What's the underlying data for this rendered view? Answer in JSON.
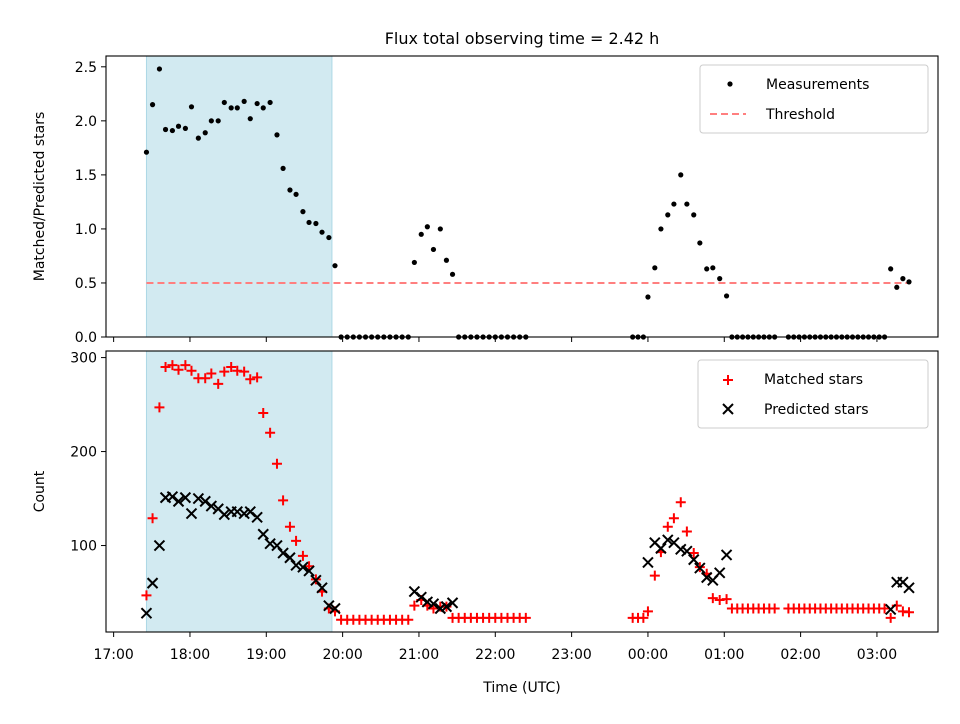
{
  "title": "Flux total observing time = 2.42 h",
  "colors": {
    "shade": "#add8e6",
    "threshold": "#ff7f7f",
    "matched": "#ff0000",
    "predicted": "#000000",
    "measurement": "#000000"
  },
  "chart_data": [
    {
      "type": "scatter",
      "ylabel": "Matched/Predicted stars",
      "xlabel": "",
      "xlim": [
        -0.1,
        10.8
      ],
      "ylim": [
        0,
        2.6
      ],
      "yticks": [
        0.0,
        0.5,
        1.0,
        1.5,
        2.0,
        2.5
      ],
      "ytick_labels": [
        "0.0",
        "0.5",
        "1.0",
        "1.5",
        "2.0",
        "2.5"
      ],
      "legend_position": "top-right",
      "legend": [
        "Measurements",
        "Threshold"
      ],
      "threshold": 0.5,
      "shaded_region": [
        0.43,
        2.86
      ],
      "measurements": [
        [
          0.43,
          1.71
        ],
        [
          0.51,
          2.15
        ],
        [
          0.6,
          2.48
        ],
        [
          0.68,
          1.92
        ],
        [
          0.77,
          1.91
        ],
        [
          0.85,
          1.95
        ],
        [
          0.94,
          1.93
        ],
        [
          1.02,
          2.13
        ],
        [
          1.11,
          1.84
        ],
        [
          1.2,
          1.89
        ],
        [
          1.28,
          2.0
        ],
        [
          1.37,
          2.0
        ],
        [
          1.45,
          2.17
        ],
        [
          1.54,
          2.12
        ],
        [
          1.62,
          2.12
        ],
        [
          1.71,
          2.18
        ],
        [
          1.79,
          2.02
        ],
        [
          1.88,
          2.16
        ],
        [
          1.96,
          2.12
        ],
        [
          2.05,
          2.17
        ],
        [
          2.14,
          1.87
        ],
        [
          2.22,
          1.56
        ],
        [
          2.31,
          1.36
        ],
        [
          2.39,
          1.32
        ],
        [
          2.48,
          1.16
        ],
        [
          2.56,
          1.06
        ],
        [
          2.65,
          1.05
        ],
        [
          2.73,
          0.97
        ],
        [
          2.82,
          0.92
        ],
        [
          2.9,
          0.66
        ],
        [
          2.98,
          0
        ],
        [
          3.06,
          0
        ],
        [
          3.14,
          0
        ],
        [
          3.22,
          0
        ],
        [
          3.3,
          0
        ],
        [
          3.38,
          0
        ],
        [
          3.46,
          0
        ],
        [
          3.54,
          0
        ],
        [
          3.62,
          0
        ],
        [
          3.7,
          0
        ],
        [
          3.78,
          0
        ],
        [
          3.86,
          0
        ],
        [
          3.94,
          0.69
        ],
        [
          4.03,
          0.95
        ],
        [
          4.11,
          1.02
        ],
        [
          4.19,
          0.81
        ],
        [
          4.28,
          1.0
        ],
        [
          4.36,
          0.71
        ],
        [
          4.44,
          0.58
        ],
        [
          4.52,
          0
        ],
        [
          4.6,
          0
        ],
        [
          4.68,
          0
        ],
        [
          4.76,
          0
        ],
        [
          4.84,
          0
        ],
        [
          4.92,
          0
        ],
        [
          5.0,
          0
        ],
        [
          5.08,
          0
        ],
        [
          5.16,
          0
        ],
        [
          5.24,
          0
        ],
        [
          5.32,
          0
        ],
        [
          5.4,
          0
        ],
        [
          6.8,
          0
        ],
        [
          6.87,
          0
        ],
        [
          6.94,
          0
        ],
        [
          7.0,
          0.37
        ],
        [
          7.09,
          0.64
        ],
        [
          7.17,
          1.0
        ],
        [
          7.26,
          1.13
        ],
        [
          7.34,
          1.23
        ],
        [
          7.43,
          1.5
        ],
        [
          7.51,
          1.23
        ],
        [
          7.6,
          1.13
        ],
        [
          7.68,
          0.87
        ],
        [
          7.77,
          0.63
        ],
        [
          7.85,
          0.64
        ],
        [
          7.94,
          0.54
        ],
        [
          8.03,
          0.38
        ],
        [
          8.1,
          0
        ],
        [
          8.17,
          0
        ],
        [
          8.24,
          0
        ],
        [
          8.31,
          0
        ],
        [
          8.38,
          0
        ],
        [
          8.45,
          0
        ],
        [
          8.52,
          0
        ],
        [
          8.59,
          0
        ],
        [
          8.66,
          0
        ],
        [
          8.84,
          0
        ],
        [
          8.91,
          0
        ],
        [
          8.98,
          0
        ],
        [
          9.05,
          0
        ],
        [
          9.12,
          0
        ],
        [
          9.19,
          0
        ],
        [
          9.26,
          0
        ],
        [
          9.33,
          0
        ],
        [
          9.4,
          0
        ],
        [
          9.47,
          0
        ],
        [
          9.54,
          0
        ],
        [
          9.61,
          0
        ],
        [
          9.68,
          0
        ],
        [
          9.75,
          0
        ],
        [
          9.82,
          0
        ],
        [
          9.89,
          0
        ],
        [
          9.96,
          0
        ],
        [
          10.03,
          0
        ],
        [
          10.1,
          0
        ],
        [
          10.18,
          0.63
        ],
        [
          10.26,
          0.46
        ],
        [
          10.34,
          0.54
        ],
        [
          10.42,
          0.51
        ]
      ]
    },
    {
      "type": "scatter",
      "ylabel": "Count",
      "xlabel": "Time (UTC)",
      "xlim": [
        -0.1,
        10.8
      ],
      "ylim": [
        8,
        307
      ],
      "yticks": [
        100,
        200,
        300
      ],
      "ytick_labels": [
        "100",
        "200",
        "300"
      ],
      "xticks": [
        0,
        1,
        2,
        3,
        4,
        5,
        6,
        7,
        8,
        9,
        10
      ],
      "xtick_labels": [
        "17:00",
        "18:00",
        "19:00",
        "20:00",
        "21:00",
        "22:00",
        "23:00",
        "00:00",
        "01:00",
        "02:00",
        "03:00"
      ],
      "legend_position": "top-right",
      "legend": [
        "Matched stars",
        "Predicted stars"
      ],
      "shaded_region": [
        0.43,
        2.86
      ],
      "matched": [
        [
          0.43,
          47
        ],
        [
          0.51,
          129
        ],
        [
          0.6,
          247
        ],
        [
          0.68,
          290
        ],
        [
          0.77,
          292
        ],
        [
          0.85,
          287
        ],
        [
          0.94,
          292
        ],
        [
          1.02,
          286
        ],
        [
          1.11,
          278
        ],
        [
          1.2,
          278
        ],
        [
          1.28,
          283
        ],
        [
          1.37,
          272
        ],
        [
          1.45,
          285
        ],
        [
          1.54,
          290
        ],
        [
          1.62,
          286
        ],
        [
          1.71,
          285
        ],
        [
          1.79,
          277
        ],
        [
          1.88,
          279
        ],
        [
          1.96,
          241
        ],
        [
          2.05,
          220
        ],
        [
          2.14,
          187
        ],
        [
          2.22,
          148
        ],
        [
          2.31,
          120
        ],
        [
          2.39,
          105
        ],
        [
          2.48,
          89
        ],
        [
          2.56,
          78
        ],
        [
          2.65,
          64
        ],
        [
          2.73,
          51
        ],
        [
          2.82,
          33
        ],
        [
          2.9,
          30
        ],
        [
          2.98,
          21
        ],
        [
          3.06,
          21
        ],
        [
          3.14,
          21
        ],
        [
          3.22,
          21
        ],
        [
          3.3,
          21
        ],
        [
          3.38,
          21
        ],
        [
          3.46,
          21
        ],
        [
          3.54,
          21
        ],
        [
          3.62,
          21
        ],
        [
          3.7,
          21
        ],
        [
          3.78,
          21
        ],
        [
          3.86,
          21
        ],
        [
          3.94,
          36
        ],
        [
          4.03,
          42
        ],
        [
          4.11,
          36
        ],
        [
          4.19,
          33
        ],
        [
          4.28,
          35
        ],
        [
          4.36,
          35
        ],
        [
          4.44,
          23
        ],
        [
          4.52,
          23
        ],
        [
          4.6,
          23
        ],
        [
          4.68,
          23
        ],
        [
          4.76,
          23
        ],
        [
          4.84,
          23
        ],
        [
          4.92,
          23
        ],
        [
          5.0,
          23
        ],
        [
          5.08,
          23
        ],
        [
          5.16,
          23
        ],
        [
          5.24,
          23
        ],
        [
          5.32,
          23
        ],
        [
          5.4,
          23
        ],
        [
          6.8,
          23
        ],
        [
          6.87,
          23
        ],
        [
          6.94,
          23
        ],
        [
          7.0,
          30
        ],
        [
          7.09,
          68
        ],
        [
          7.17,
          93
        ],
        [
          7.26,
          120
        ],
        [
          7.34,
          129
        ],
        [
          7.43,
          146
        ],
        [
          7.51,
          115
        ],
        [
          7.6,
          92
        ],
        [
          7.68,
          77
        ],
        [
          7.77,
          70
        ],
        [
          7.85,
          44
        ],
        [
          7.94,
          42
        ],
        [
          8.03,
          43
        ],
        [
          8.1,
          33
        ],
        [
          8.17,
          33
        ],
        [
          8.24,
          33
        ],
        [
          8.31,
          33
        ],
        [
          8.38,
          33
        ],
        [
          8.45,
          33
        ],
        [
          8.52,
          33
        ],
        [
          8.59,
          33
        ],
        [
          8.66,
          33
        ],
        [
          8.84,
          33
        ],
        [
          8.91,
          33
        ],
        [
          8.98,
          33
        ],
        [
          9.05,
          33
        ],
        [
          9.12,
          33
        ],
        [
          9.19,
          33
        ],
        [
          9.26,
          33
        ],
        [
          9.33,
          33
        ],
        [
          9.4,
          33
        ],
        [
          9.47,
          33
        ],
        [
          9.54,
          33
        ],
        [
          9.61,
          33
        ],
        [
          9.68,
          33
        ],
        [
          9.75,
          33
        ],
        [
          9.82,
          33
        ],
        [
          9.89,
          33
        ],
        [
          9.96,
          33
        ],
        [
          10.03,
          33
        ],
        [
          10.1,
          33
        ],
        [
          10.18,
          23
        ],
        [
          10.26,
          36
        ],
        [
          10.34,
          30
        ],
        [
          10.42,
          29
        ]
      ],
      "predicted": [
        [
          0.43,
          28
        ],
        [
          0.51,
          60
        ],
        [
          0.6,
          100
        ],
        [
          0.68,
          151
        ],
        [
          0.77,
          152
        ],
        [
          0.85,
          147
        ],
        [
          0.94,
          151
        ],
        [
          1.02,
          134
        ],
        [
          1.11,
          150
        ],
        [
          1.2,
          147
        ],
        [
          1.28,
          142
        ],
        [
          1.37,
          139
        ],
        [
          1.45,
          133
        ],
        [
          1.54,
          136
        ],
        [
          1.62,
          136
        ],
        [
          1.71,
          134
        ],
        [
          1.79,
          136
        ],
        [
          1.88,
          130
        ],
        [
          1.96,
          112
        ],
        [
          2.05,
          102
        ],
        [
          2.14,
          100
        ],
        [
          2.22,
          92
        ],
        [
          2.31,
          87
        ],
        [
          2.39,
          79
        ],
        [
          2.48,
          77
        ],
        [
          2.56,
          73
        ],
        [
          2.65,
          63
        ],
        [
          2.73,
          55
        ],
        [
          2.82,
          36
        ],
        [
          2.9,
          33
        ],
        [
          3.94,
          51
        ],
        [
          4.03,
          45
        ],
        [
          4.11,
          40
        ],
        [
          4.19,
          38
        ],
        [
          4.28,
          33
        ],
        [
          4.36,
          35
        ],
        [
          4.44,
          39
        ],
        [
          7.0,
          82
        ],
        [
          7.09,
          103
        ],
        [
          7.17,
          97
        ],
        [
          7.26,
          106
        ],
        [
          7.34,
          103
        ],
        [
          7.43,
          96
        ],
        [
          7.51,
          94
        ],
        [
          7.6,
          85
        ],
        [
          7.68,
          76
        ],
        [
          7.77,
          66
        ],
        [
          7.85,
          63
        ],
        [
          7.94,
          71
        ],
        [
          8.03,
          90
        ],
        [
          10.18,
          32
        ],
        [
          10.26,
          61
        ],
        [
          10.34,
          61
        ],
        [
          10.42,
          55
        ]
      ]
    }
  ]
}
